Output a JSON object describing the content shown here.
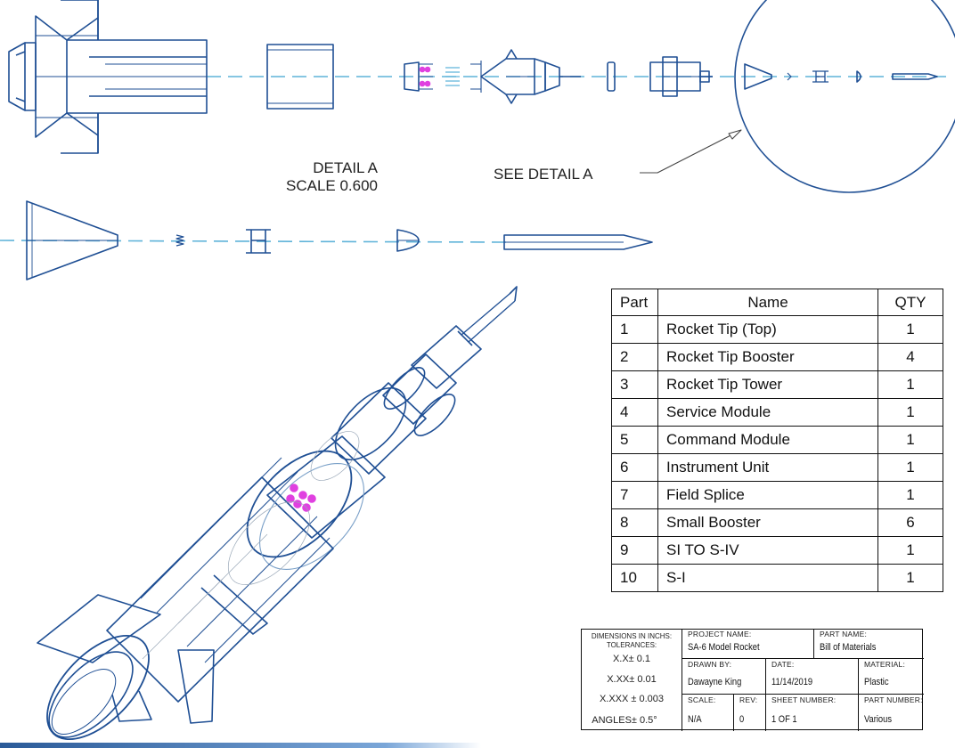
{
  "detail": {
    "title": "DETAIL  A",
    "scale": "SCALE  0.600",
    "callout": "SEE DETAIL  A"
  },
  "bom": {
    "headers": {
      "part": "Part",
      "name": "Name",
      "qty": "QTY"
    },
    "rows": [
      {
        "part": "1",
        "name": "Rocket Tip (Top)",
        "qty": "1"
      },
      {
        "part": "2",
        "name": "Rocket Tip Booster",
        "qty": "4"
      },
      {
        "part": "3",
        "name": "Rocket Tip Tower",
        "qty": "1"
      },
      {
        "part": "4",
        "name": "Service Module",
        "qty": "1"
      },
      {
        "part": "5",
        "name": "Command Module",
        "qty": "1"
      },
      {
        "part": "6",
        "name": "Instrument Unit",
        "qty": "1"
      },
      {
        "part": "7",
        "name": "Field Splice",
        "qty": "1"
      },
      {
        "part": "8",
        "name": "Small Booster",
        "qty": "6"
      },
      {
        "part": "9",
        "name": "SI TO S-IV",
        "qty": "1"
      },
      {
        "part": "10",
        "name": "S-I",
        "qty": "1"
      }
    ]
  },
  "title_block": {
    "tolerances_header": "DIMENSIONS IN INCHS:\nTOLERANCES:",
    "tolerances": [
      "X.X±  0.1",
      "X.XX±  0.01",
      "X.XXX ±  0.003",
      "ANGLES±  0.5°"
    ],
    "project_name_label": "PROJECT NAME:",
    "project_name": "SA-6 Model Rocket",
    "part_name_label": "PART NAME:",
    "part_name": "Bill of Materials",
    "drawn_by_label": "DRAWN BY:",
    "drawn_by": "Dawayne King",
    "date_label": "DATE:",
    "date": "11/14/2019",
    "material_label": "MATERIAL:",
    "material": "Plastic",
    "scale_label": "SCALE:",
    "scale": "N/A",
    "rev_label": "REV:",
    "rev": "0",
    "sheet_label": "SHEET NUMBER:",
    "sheet": "1 OF 1",
    "part_number_label": "PART NUMBER:",
    "part_number": "Various"
  },
  "colors": {
    "line": "#1f4f94",
    "centerline": "#5fb3d9",
    "highlight": "#e040e0"
  }
}
